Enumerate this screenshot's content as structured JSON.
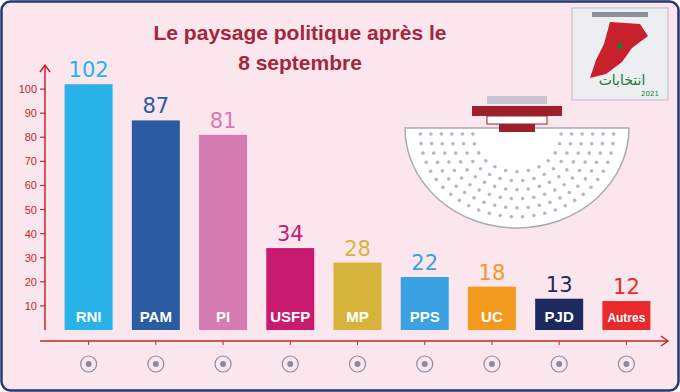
{
  "chart_data": {
    "type": "bar",
    "title": "Le paysage politique après le 8 septembre",
    "categories": [
      "RNI",
      "PAM",
      "PI",
      "USFP",
      "MP",
      "PPS",
      "UC",
      "PJD",
      "Autres"
    ],
    "values": [
      102,
      87,
      81,
      34,
      28,
      22,
      18,
      13,
      12
    ],
    "colors": [
      "#29b2e8",
      "#2b5ba3",
      "#d57bb2",
      "#c81a6e",
      "#d6b43c",
      "#3aa1e3",
      "#f29a1e",
      "#1d2a5f",
      "#e82a2c"
    ],
    "ylim": [
      0,
      110
    ],
    "yticks": [
      10,
      20,
      30,
      40,
      50,
      60,
      70,
      80,
      90,
      100
    ],
    "grid": false,
    "data_labels": true,
    "annotations": [
      "انتخابات",
      "2021"
    ]
  }
}
